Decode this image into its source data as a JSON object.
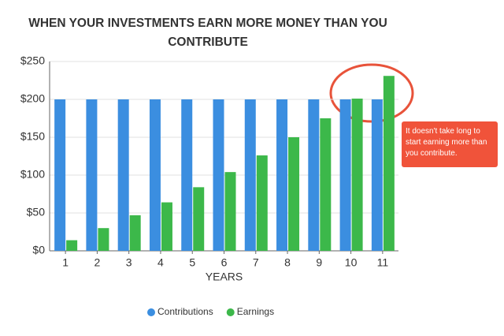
{
  "chart_data": {
    "type": "bar",
    "title": "WHEN YOUR INVESTMENTS EARN MORE MONEY THAN YOU CONTRIBUTE",
    "x_label": "YEARS",
    "categories": [
      "1",
      "2",
      "3",
      "4",
      "5",
      "6",
      "7",
      "8",
      "9",
      "10",
      "11"
    ],
    "series": [
      {
        "name": "Contributions",
        "color": "#3b8ee0",
        "values": [
          200,
          200,
          200,
          200,
          200,
          200,
          200,
          200,
          200,
          200,
          200
        ]
      },
      {
        "name": "Earnings",
        "color": "#3cb84a",
        "values": [
          14,
          30,
          47,
          64,
          84,
          104,
          126,
          150,
          175,
          201,
          231
        ]
      }
    ],
    "ylim": [
      0,
      250
    ],
    "yticks": [
      {
        "value": 0,
        "label": "$0"
      },
      {
        "value": 50,
        "label": "$50"
      },
      {
        "value": 100,
        "label": "$100"
      },
      {
        "value": 150,
        "label": "$150"
      },
      {
        "value": 200,
        "label": "$200"
      },
      {
        "value": 250,
        "label": "$250"
      }
    ],
    "grid": true,
    "legend": "bottom",
    "annotation": "It doesn't take long to start earning more than you contribute."
  }
}
